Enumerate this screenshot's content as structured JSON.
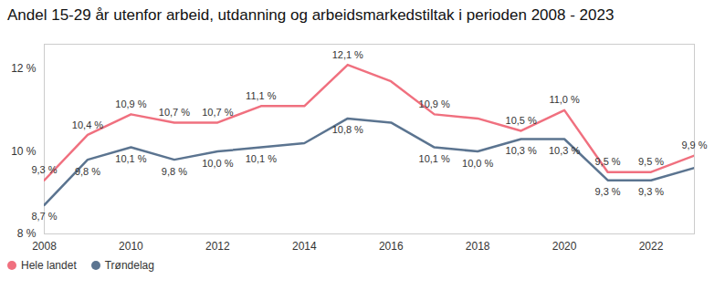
{
  "chart_data": {
    "type": "line",
    "title": "Andel 15-29 år utenfor arbeid, utdanning og arbeidsmarkedstiltak i perioden 2008 - 2023",
    "x": [
      2008,
      2009,
      2010,
      2011,
      2012,
      2013,
      2014,
      2015,
      2016,
      2017,
      2018,
      2019,
      2020,
      2021,
      2022,
      2023
    ],
    "series": [
      {
        "name": "Hele landet",
        "color": "#f0707f",
        "values": [
          9.3,
          10.4,
          10.9,
          10.7,
          10.7,
          11.1,
          11.1,
          12.1,
          11.7,
          10.9,
          10.8,
          10.5,
          11.0,
          9.5,
          9.5,
          9.9
        ],
        "value_labels": [
          "9,3 %",
          "10,4 %",
          "10,9 %",
          "10,7 %",
          "10,7 %",
          "11,1 %",
          null,
          "12,1 %",
          null,
          "10,9 %",
          null,
          "10,5 %",
          "11,0 %",
          "9,5 %",
          "9,5 %",
          "9,9 %"
        ]
      },
      {
        "name": "Trøndelag",
        "color": "#5b7490",
        "values": [
          8.7,
          9.8,
          10.1,
          9.8,
          10.0,
          10.1,
          10.2,
          10.8,
          10.7,
          10.1,
          10.0,
          10.3,
          10.3,
          9.3,
          9.3,
          9.6
        ],
        "value_labels": [
          "8,7 %",
          "9,8 %",
          "10,1 %",
          "9,8 %",
          "10,0 %",
          "10,1 %",
          null,
          "10,8 %",
          null,
          "10,1 %",
          "10,0 %",
          "10,3 %",
          "10,3 %",
          "9,3 %",
          "9,3 %",
          null
        ]
      }
    ],
    "xlim": [
      2008,
      2023
    ],
    "xticks": [
      2008,
      2010,
      2012,
      2014,
      2016,
      2018,
      2020,
      2022
    ],
    "ylim": [
      8,
      12.6
    ],
    "yticks": [
      {
        "value": 8,
        "label": "8 %"
      },
      {
        "value": 10,
        "label": "10 %"
      },
      {
        "value": 12,
        "label": "12 %"
      }
    ],
    "grid": false,
    "data_labels": true,
    "legend": "bottom-left"
  }
}
